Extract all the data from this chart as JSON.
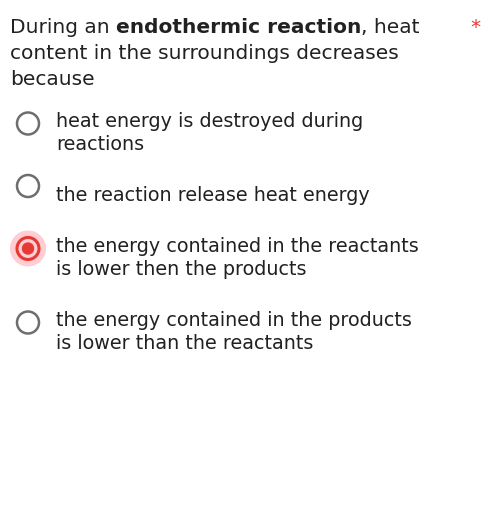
{
  "background_color": "#ffffff",
  "seg1": "During an ",
  "seg2": "endothermic reaction",
  "seg3": ", heat",
  "question_line2": "content in the surroundings decreases",
  "question_line3": "because",
  "asterisk": "*",
  "asterisk_color": "#e53935",
  "options": [
    {
      "lines": [
        "heat energy is destroyed during",
        "reactions"
      ],
      "selected": false
    },
    {
      "lines": [
        "the reaction release heat energy"
      ],
      "selected": false
    },
    {
      "lines": [
        "the energy contained in the reactants",
        "is lower then the products"
      ],
      "selected": true
    },
    {
      "lines": [
        "the energy contained in the products",
        "is lower than the reactants"
      ],
      "selected": false
    }
  ],
  "text_color": "#212121",
  "circle_color": "#6e6e6e",
  "selected_dot_color": "#e53935",
  "selected_ring_color": "#e53935",
  "selected_bg_color": "#ffcdd2",
  "font_size_question": 14.5,
  "font_size_option": 13.8,
  "fig_width": 4.99,
  "fig_height": 5.15,
  "dpi": 100
}
